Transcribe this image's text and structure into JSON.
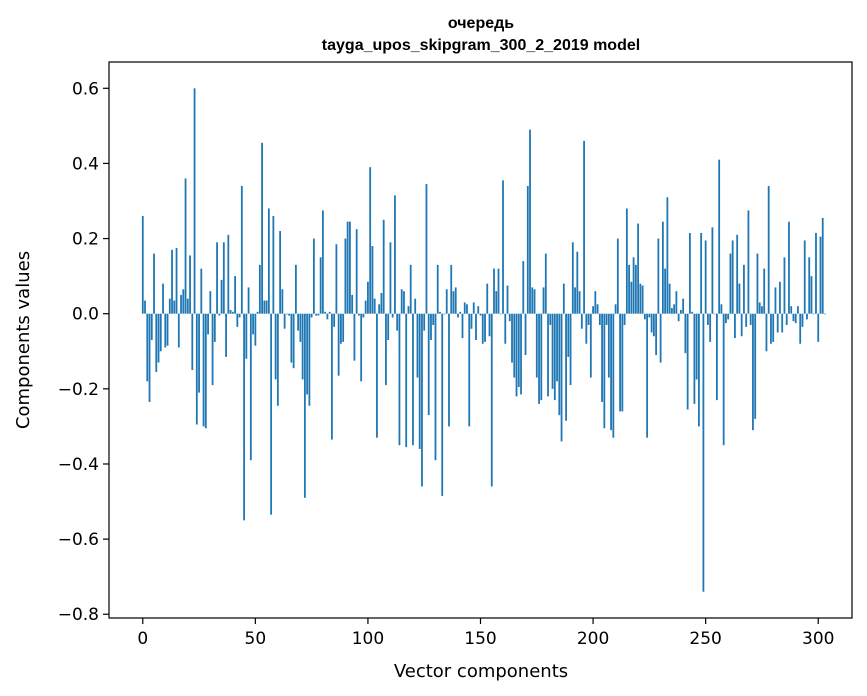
{
  "chart_data": {
    "type": "bar",
    "title": "очередь",
    "subtitle": "tayga_upos_skipgram_300_2_2019 model",
    "xlabel": "Vector components",
    "ylabel": "Components values",
    "xlim": [
      -15,
      315
    ],
    "ylim": [
      -0.81,
      0.67
    ],
    "xticks": [
      0,
      50,
      100,
      150,
      200,
      250,
      300
    ],
    "yticks": [
      -0.8,
      -0.6,
      -0.4,
      -0.2,
      0.0,
      0.2,
      0.4,
      0.6
    ],
    "ytick_labels": [
      "−0.8",
      "−0.6",
      "−0.4",
      "−0.2",
      "0.0",
      "0.2",
      "0.4",
      "0.6"
    ],
    "xtick_labels": [
      "0",
      "50",
      "100",
      "150",
      "200",
      "250",
      "300"
    ],
    "color": "#1f77b4",
    "values": [
      0.26,
      0.035,
      -0.18,
      -0.235,
      -0.07,
      0.16,
      -0.155,
      -0.13,
      -0.1,
      0.08,
      -0.09,
      -0.085,
      0.04,
      0.17,
      0.035,
      0.175,
      -0.09,
      0.05,
      0.065,
      0.36,
      0.04,
      0.155,
      -0.15,
      0.6,
      -0.295,
      -0.21,
      0.12,
      -0.3,
      -0.305,
      -0.055,
      0.06,
      -0.19,
      -0.075,
      0.19,
      -0.005,
      0.09,
      0.19,
      -0.115,
      0.21,
      0.01,
      0.005,
      0.1,
      -0.035,
      -0.01,
      0.34,
      -0.55,
      -0.12,
      0.07,
      -0.39,
      -0.055,
      -0.085,
      0.005,
      0.13,
      0.455,
      0.035,
      0.035,
      0.28,
      -0.535,
      0.26,
      -0.175,
      -0.245,
      0.22,
      0.065,
      -0.04,
      0.0,
      -0.005,
      -0.13,
      -0.145,
      0.13,
      -0.045,
      -0.075,
      -0.175,
      -0.49,
      -0.215,
      -0.245,
      -0.01,
      0.2,
      -0.005,
      -0.005,
      0.15,
      0.275,
      0.005,
      -0.015,
      0.005,
      -0.335,
      -0.035,
      0.185,
      -0.165,
      -0.08,
      -0.075,
      0.2,
      0.245,
      0.245,
      0.05,
      -0.125,
      0.225,
      -0.005,
      -0.18,
      -0.01,
      0.035,
      0.085,
      0.39,
      0.18,
      0.04,
      -0.33,
      0.025,
      0.055,
      0.25,
      -0.19,
      -0.07,
      0.19,
      -0.01,
      0.315,
      -0.045,
      -0.35,
      0.065,
      0.06,
      -0.355,
      0.02,
      0.13,
      -0.35,
      0.04,
      -0.17,
      -0.36,
      -0.46,
      -0.045,
      0.345,
      -0.27,
      -0.07,
      -0.03,
      -0.39,
      0.13,
      0.005,
      -0.485,
      0.0,
      0.065,
      -0.3,
      0.13,
      0.06,
      0.07,
      -0.01,
      0.005,
      -0.065,
      0.03,
      0.025,
      -0.3,
      -0.04,
      0.03,
      -0.07,
      0.02,
      -0.005,
      -0.08,
      -0.075,
      0.08,
      -0.06,
      -0.46,
      0.12,
      0.06,
      0.12,
      0.0,
      0.355,
      -0.08,
      0.075,
      -0.02,
      -0.13,
      -0.17,
      -0.22,
      -0.195,
      -0.215,
      0.14,
      -0.11,
      0.34,
      0.49,
      0.07,
      0.065,
      -0.17,
      -0.24,
      -0.23,
      0.07,
      0.16,
      -0.22,
      -0.03,
      -0.2,
      -0.23,
      -0.18,
      -0.27,
      -0.34,
      0.08,
      -0.285,
      -0.115,
      -0.19,
      0.19,
      0.07,
      0.165,
      0.06,
      -0.04,
      0.46,
      -0.08,
      -0.03,
      -0.17,
      0.02,
      0.06,
      0.025,
      -0.03,
      -0.235,
      -0.305,
      -0.03,
      -0.17,
      -0.31,
      -0.33,
      0.025,
      0.2,
      -0.26,
      -0.26,
      -0.03,
      0.28,
      0.13,
      0.085,
      0.15,
      0.13,
      0.24,
      0.08,
      0.075,
      -0.015,
      -0.33,
      -0.01,
      -0.05,
      -0.06,
      -0.11,
      0.2,
      -0.13,
      0.245,
      0.12,
      0.31,
      0.08,
      0.015,
      0.025,
      0.06,
      -0.02,
      0.01,
      0.04,
      -0.105,
      -0.255,
      0.215,
      0.005,
      -0.24,
      -0.175,
      -0.3,
      0.215,
      -0.74,
      0.195,
      -0.03,
      -0.075,
      0.23,
      0.0,
      -0.23,
      0.41,
      0.025,
      -0.35,
      -0.025,
      -0.015,
      0.16,
      0.195,
      -0.065,
      0.21,
      0.08,
      -0.06,
      0.13,
      -0.035,
      0.275,
      -0.03,
      -0.31,
      -0.28,
      0.16,
      0.03,
      0.02,
      0.12,
      -0.1,
      0.34,
      -0.08,
      -0.075,
      0.07,
      -0.05,
      0.085,
      -0.05,
      0.15,
      -0.03,
      0.245,
      0.02,
      -0.02,
      -0.025,
      0.02,
      -0.08,
      -0.035,
      0.195,
      -0.015,
      0.15,
      0.1,
      0.0,
      0.215,
      -0.075,
      0.205,
      0.255,
      0.0
    ]
  }
}
